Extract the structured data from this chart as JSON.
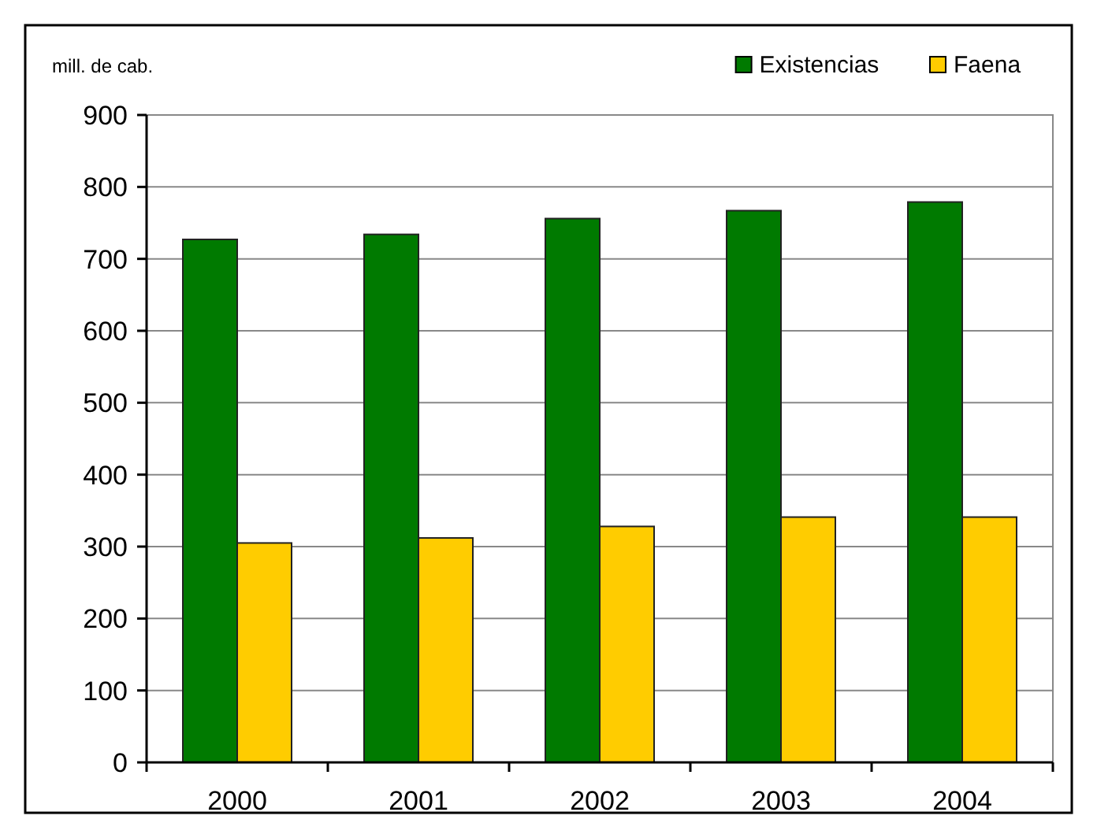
{
  "chart_data": {
    "type": "bar",
    "ylabel": "mill. de cab.",
    "categories": [
      "2000",
      "2001",
      "2002",
      "2003",
      "2004"
    ],
    "series": [
      {
        "name": "Existencias",
        "color": "#007a00",
        "values": [
          727,
          734,
          756,
          767,
          779
        ]
      },
      {
        "name": "Faena",
        "color": "#ffcc00",
        "values": [
          305,
          312,
          328,
          341,
          341
        ]
      }
    ],
    "ylim": [
      0,
      900
    ],
    "yticks": [
      0,
      100,
      200,
      300,
      400,
      500,
      600,
      700,
      800,
      900
    ],
    "grid": "y",
    "legend": "top right"
  }
}
